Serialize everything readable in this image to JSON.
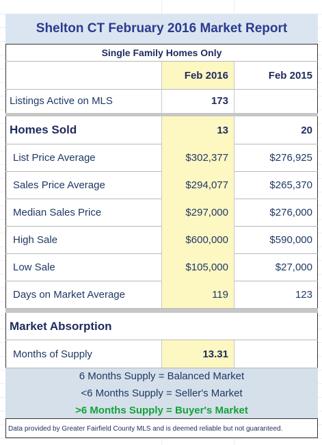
{
  "header": {
    "title": "Shelton CT February 2016 Market Report",
    "subtitle": "Single Family Homes Only"
  },
  "columns": [
    "Feb 2016",
    "Feb 2015"
  ],
  "rows": [
    {
      "label": "Listings Active on MLS",
      "values": [
        "173",
        null
      ]
    },
    {
      "label": "Homes Sold",
      "values": [
        "13",
        "20"
      ]
    },
    {
      "label": "List Price Average",
      "values": [
        "$302,377",
        "$276,925"
      ]
    },
    {
      "label": "Sales Price Average",
      "values": [
        "$294,077",
        "$265,370"
      ]
    },
    {
      "label": "Median Sales Price",
      "values": [
        "$297,000",
        "$276,000"
      ]
    },
    {
      "label": "High Sale",
      "values": [
        "$600,000",
        "$590,000"
      ]
    },
    {
      "label": "Low Sale",
      "values": [
        "$105,000",
        "$27,000"
      ]
    },
    {
      "label": "Days on Market Average",
      "values": [
        "119",
        "123"
      ]
    }
  ],
  "absorption": {
    "title": "Market Absorption",
    "label": "Months of Supply",
    "value": "13.31"
  },
  "legend": [
    "6 Months Supply = Balanced Market",
    "<6 Months Supply = Seller's Market",
    ">6 Months Supply = Buyer's Market"
  ],
  "footer": "Data provided by Greater Fairfield County MLS and is deemed reliable but not guaranteed."
}
